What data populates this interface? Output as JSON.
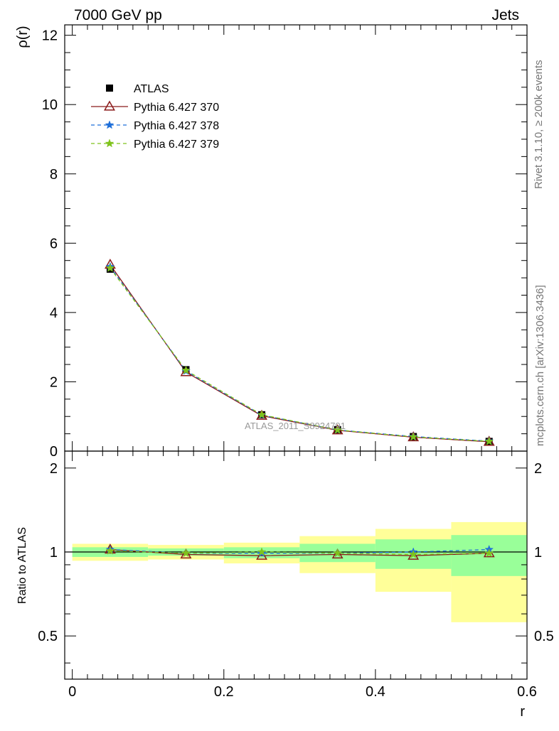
{
  "header": {
    "left_label": "7000 GeV pp",
    "right_label": "Jets"
  },
  "side_labels": {
    "rivet": "Rivet 3.1.10, ≥ 200k events",
    "mcplots": "mcplots.cern.ch [arXiv:1306.3436]"
  },
  "watermark": "ATLAS_2011_S8924791",
  "colors": {
    "atlas": "#000000",
    "p370": "#8b1a1a",
    "p378": "#1e6fd9",
    "p379": "#7fc31c",
    "band_inner": "#99ff99",
    "band_outer": "#ffff99"
  },
  "chart_data": [
    {
      "type": "line",
      "panel": "main",
      "ylabel": "ρ(r)",
      "xlim": [
        -0.01,
        0.6
      ],
      "ylim": [
        0,
        12.3
      ],
      "yticks": [
        0,
        2,
        4,
        6,
        8,
        10,
        12
      ],
      "ytick_labels": [
        "0",
        "2",
        "4",
        "6",
        "8",
        "10",
        "12"
      ],
      "legend_position": "top-left",
      "legend": [
        {
          "key": "atlas",
          "label": "ATLAS"
        },
        {
          "key": "p370",
          "label": "Pythia 6.427 370"
        },
        {
          "key": "p378",
          "label": "Pythia 6.427 378"
        },
        {
          "key": "p379",
          "label": "Pythia 6.427 379"
        }
      ],
      "x": [
        0.05,
        0.15,
        0.25,
        0.35,
        0.45,
        0.55
      ],
      "series": [
        {
          "key": "atlas",
          "name": "ATLAS",
          "values": [
            5.25,
            2.35,
            1.05,
            0.62,
            0.42,
            0.28
          ]
        },
        {
          "key": "p370",
          "name": "Pythia 6.427 370",
          "values": [
            5.38,
            2.28,
            1.02,
            0.6,
            0.4,
            0.27
          ]
        },
        {
          "key": "p378",
          "name": "Pythia 6.427 378",
          "values": [
            5.32,
            2.31,
            1.04,
            0.61,
            0.42,
            0.29
          ]
        },
        {
          "key": "p379",
          "name": "Pythia 6.427 379",
          "values": [
            5.28,
            2.33,
            1.05,
            0.61,
            0.41,
            0.28
          ]
        }
      ]
    },
    {
      "type": "line",
      "panel": "ratio",
      "xlabel": "r",
      "ylabel": "Ratio to ATLAS",
      "xlim": [
        -0.01,
        0.6
      ],
      "ylim": [
        0.35,
        2.3
      ],
      "yticks": [
        0.5,
        1,
        2
      ],
      "ytick_labels": [
        "0.5",
        "1",
        "2"
      ],
      "xticks": [
        0,
        0.2,
        0.4,
        0.6
      ],
      "xtick_labels": [
        "0",
        "0.2",
        "0.4",
        "0.6"
      ],
      "bins": [
        [
          0,
          0.1
        ],
        [
          0.1,
          0.2
        ],
        [
          0.2,
          0.3
        ],
        [
          0.3,
          0.4
        ],
        [
          0.4,
          0.5
        ],
        [
          0.5,
          0.6
        ]
      ],
      "band_inner": [
        [
          0.96,
          1.04
        ],
        [
          0.97,
          1.03
        ],
        [
          0.95,
          1.04
        ],
        [
          0.92,
          1.07
        ],
        [
          0.87,
          1.11
        ],
        [
          0.82,
          1.15
        ]
      ],
      "band_outer": [
        [
          0.93,
          1.07
        ],
        [
          0.94,
          1.06
        ],
        [
          0.91,
          1.08
        ],
        [
          0.84,
          1.14
        ],
        [
          0.72,
          1.21
        ],
        [
          0.56,
          1.28
        ]
      ],
      "x": [
        0.05,
        0.15,
        0.25,
        0.35,
        0.45,
        0.55
      ],
      "series": [
        {
          "key": "p370",
          "name": "Pythia 6.427 370",
          "values": [
            1.02,
            0.98,
            0.97,
            0.98,
            0.97,
            0.99
          ]
        },
        {
          "key": "p378",
          "name": "Pythia 6.427 378",
          "values": [
            1.02,
            0.99,
            0.99,
            0.99,
            1.0,
            1.02
          ]
        },
        {
          "key": "p379",
          "name": "Pythia 6.427 379",
          "values": [
            1.01,
            0.99,
            1.0,
            0.99,
            0.98,
            0.99
          ]
        }
      ]
    }
  ]
}
